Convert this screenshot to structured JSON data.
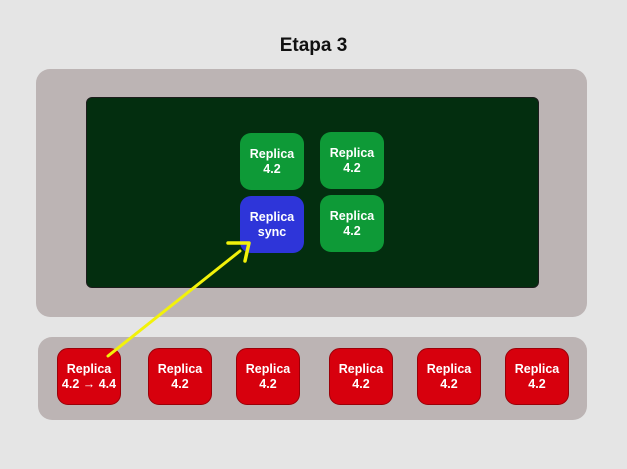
{
  "title": "Etapa 3",
  "colors": {
    "background": "#e5e5e5",
    "panel": "#bcb4b4",
    "inner_panel": "#032e0f",
    "green_node": "#0e9a37",
    "blue_node": "#2e35d9",
    "red_node": "#d7000d",
    "arrow": "#f2f20a"
  },
  "cluster_nodes": [
    {
      "line1": "Replica",
      "line2": "4.2",
      "color": "green"
    },
    {
      "line1": "Replica",
      "line2": "4.2",
      "color": "green"
    },
    {
      "line1": "Replica",
      "line2": "sync",
      "color": "blue"
    },
    {
      "line1": "Replica",
      "line2": "4.2",
      "color": "green"
    }
  ],
  "pool_nodes": [
    {
      "line1": "Replica",
      "line2": "4.2 → 4.4",
      "color": "red"
    },
    {
      "line1": "Replica",
      "line2": "4.2",
      "color": "red"
    },
    {
      "line1": "Replica",
      "line2": "4.2",
      "color": "red"
    },
    {
      "line1": "Replica",
      "line2": "4.2",
      "color": "red"
    },
    {
      "line1": "Replica",
      "line2": "4.2",
      "color": "red"
    },
    {
      "line1": "Replica",
      "line2": "4.2",
      "color": "red"
    }
  ]
}
